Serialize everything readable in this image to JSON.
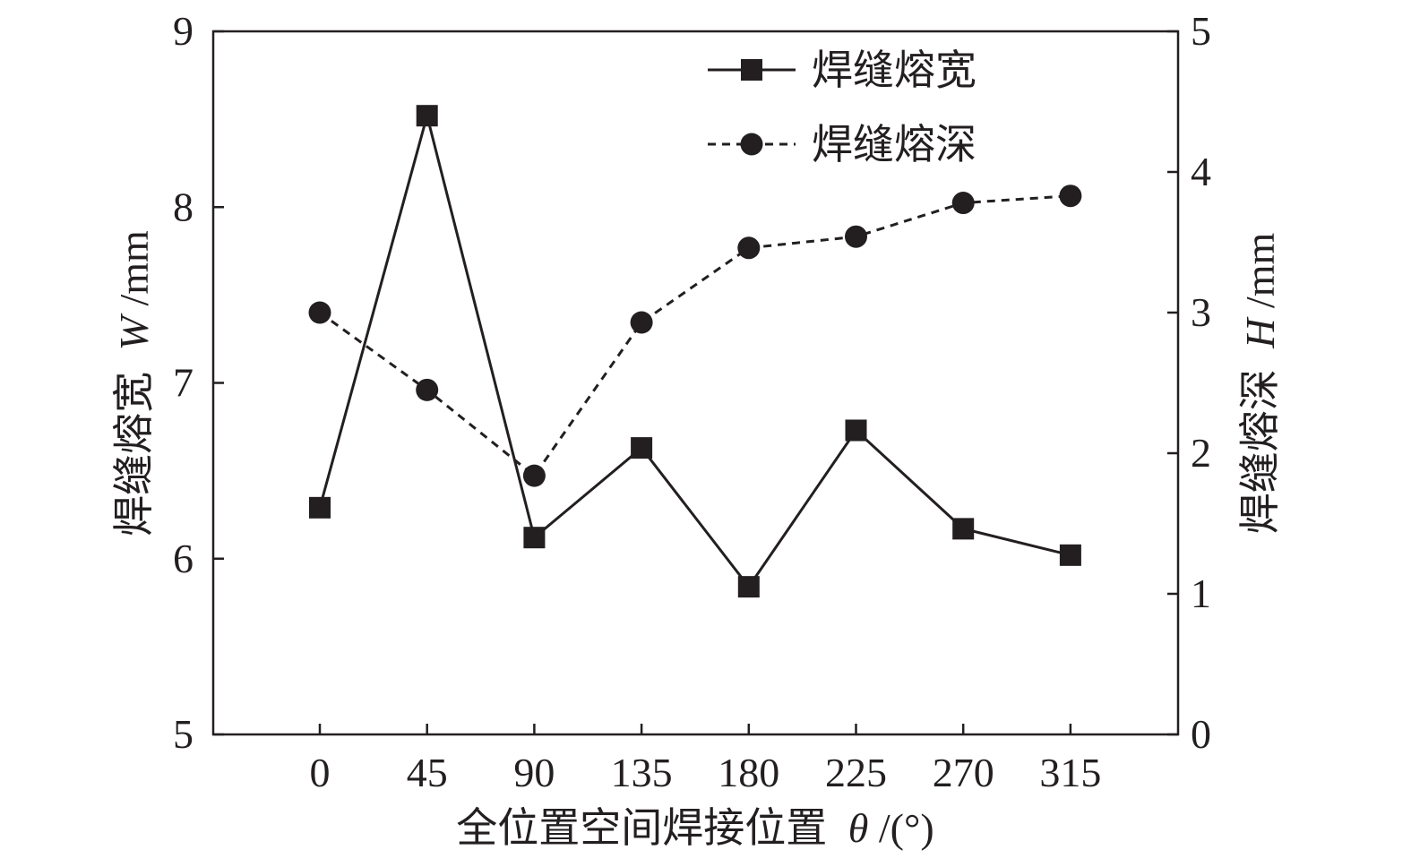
{
  "chart_data": {
    "type": "line",
    "x_label": "全位置空间焊接位置",
    "x_label_symbol": "θ",
    "x_label_unit": "/(°)",
    "y_left_label": "焊缝熔宽",
    "y_left_symbol": "W",
    "y_left_unit": "/mm",
    "y_right_label": "焊缝熔深",
    "y_right_symbol": "H",
    "y_right_unit": "/mm",
    "categories": [
      "0",
      "45",
      "90",
      "135",
      "180",
      "225",
      "270",
      "315"
    ],
    "y_left_ticks": [
      "5",
      "6",
      "7",
      "8",
      "9"
    ],
    "y_right_ticks": [
      "0",
      "1",
      "2",
      "3",
      "4",
      "5"
    ],
    "y_left_lim": [
      5,
      9
    ],
    "y_right_lim": [
      0,
      5
    ],
    "legend_position": "top-right",
    "grid": false,
    "series": [
      {
        "name": "焊缝熔宽",
        "axis": "left",
        "marker": "square",
        "line_style": "solid",
        "values": [
          6.29,
          8.52,
          6.12,
          6.63,
          5.84,
          6.73,
          6.17,
          6.02
        ]
      },
      {
        "name": "焊缝熔深",
        "axis": "right",
        "marker": "circle",
        "line_style": "dashed",
        "values": [
          3.0,
          2.45,
          1.84,
          2.93,
          3.46,
          3.54,
          3.78,
          3.83
        ]
      }
    ],
    "colors": {
      "ink": "#231f20",
      "background": "#ffffff"
    }
  }
}
